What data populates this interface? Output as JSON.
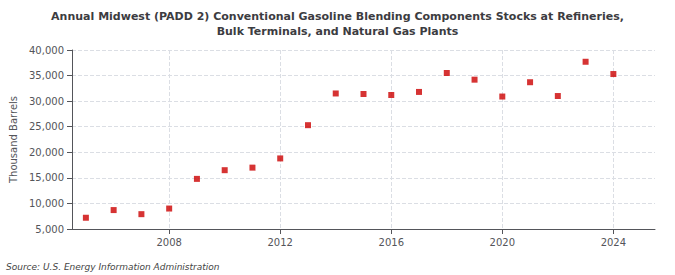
{
  "chart_data": {
    "type": "scatter",
    "title": "Annual Midwest (PADD 2) Conventional Gasoline Blending Components Stocks at Refineries,\nBulk Terminals, and Natural Gas Plants",
    "ylabel": "Thousand Barrels",
    "source": "Source: U.S. Energy Information Administration",
    "x": [
      2005,
      2006,
      2007,
      2008,
      2009,
      2010,
      2011,
      2012,
      2013,
      2014,
      2015,
      2016,
      2017,
      2018,
      2019,
      2020,
      2021,
      2022,
      2023,
      2024
    ],
    "values": [
      7200,
      8700,
      7900,
      9000,
      14800,
      16500,
      17000,
      18800,
      25300,
      31500,
      31400,
      31200,
      31800,
      35500,
      34200,
      30900,
      33700,
      31000,
      37700,
      35300
    ],
    "color": "#cc0000",
    "marker": "square",
    "xlim": [
      2004.5,
      2025.5
    ],
    "xticks": [
      2008,
      2012,
      2016,
      2020,
      2024
    ],
    "ylim": [
      5000,
      40000
    ],
    "yticks": [
      {
        "value": 5000,
        "label": "5,000"
      },
      {
        "value": 10000,
        "label": "10,000"
      },
      {
        "value": 15000,
        "label": "15,000"
      },
      {
        "value": 20000,
        "label": "20,000"
      },
      {
        "value": 25000,
        "label": "25,000"
      },
      {
        "value": 30000,
        "label": "30,000"
      },
      {
        "value": 35000,
        "label": "35,000"
      },
      {
        "value": 40000,
        "label": "40,000"
      }
    ],
    "grid": true
  }
}
